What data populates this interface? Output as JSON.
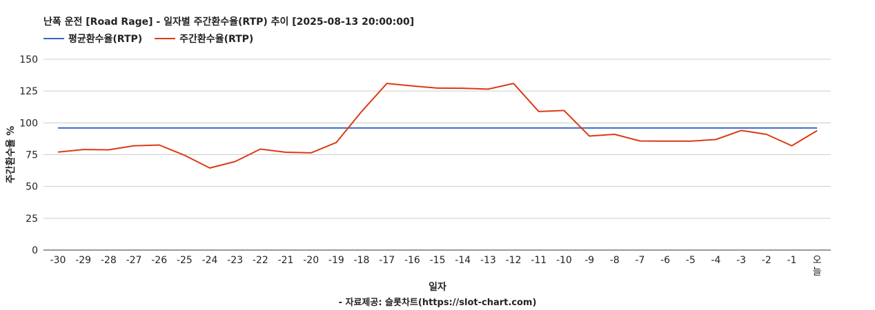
{
  "chart_data": {
    "type": "line",
    "title": "난폭 운전 [Road Rage] - 일자별 주간환수율(RTP) 추이 [2025-08-13 20:00:00]",
    "xlabel": "일자",
    "ylabel": "주간환수율 %",
    "source": "- 자료제공: 슬롯차트(https://slot-chart.com)",
    "ylim": [
      0,
      150
    ],
    "yticks": [
      "0",
      "25",
      "50",
      "75",
      "100",
      "125",
      "150"
    ],
    "grid": true,
    "legend_position": "top-left",
    "categories": [
      "-30",
      "-29",
      "-28",
      "-27",
      "-26",
      "-25",
      "-24",
      "-23",
      "-22",
      "-21",
      "-20",
      "-19",
      "-18",
      "-17",
      "-16",
      "-15",
      "-14",
      "-13",
      "-12",
      "-11",
      "-10",
      "-9",
      "-8",
      "-7",
      "-6",
      "-5",
      "-4",
      "-3",
      "-2",
      "-1",
      "오늘"
    ],
    "series": [
      {
        "name": "평균환수율(RTP)",
        "color": "#3366cc",
        "values": [
          96,
          96,
          96,
          96,
          96,
          96,
          96,
          96,
          96,
          96,
          96,
          96,
          96,
          96,
          96,
          96,
          96,
          96,
          96,
          96,
          96,
          96,
          96,
          96,
          96,
          96,
          96,
          96,
          96,
          96,
          96
        ]
      },
      {
        "name": "주간환수율(RTP)",
        "color": "#dc3912",
        "values": [
          77,
          79,
          78.8,
          82,
          82.6,
          74.5,
          64.5,
          69.6,
          79.4,
          76.9,
          76.4,
          84.6,
          108.9,
          131,
          129,
          127.3,
          127.2,
          126.5,
          131,
          108.9,
          109.7,
          89.6,
          91,
          85.8,
          85.6,
          85.6,
          86.9,
          94,
          91,
          82,
          93.9
        ]
      }
    ]
  }
}
